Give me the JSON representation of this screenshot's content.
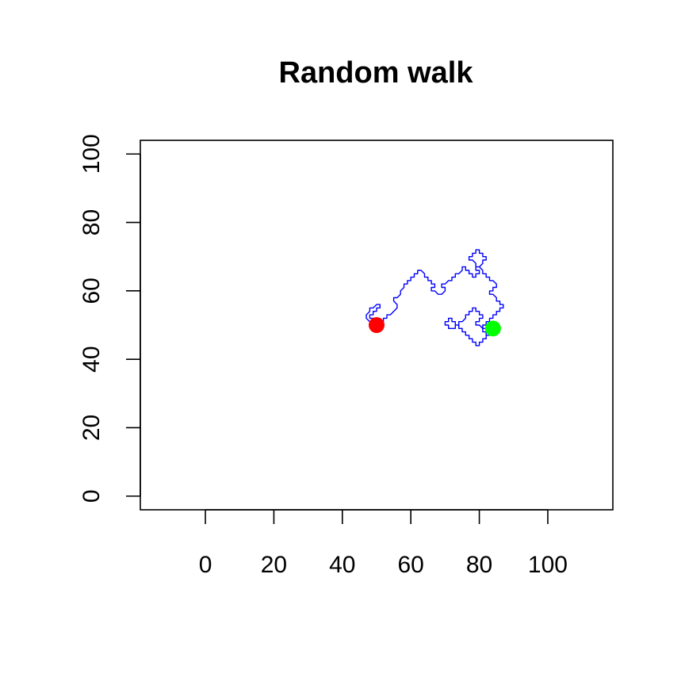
{
  "chart_data": {
    "type": "line",
    "title": "Random walk",
    "xlabel": "",
    "ylabel": "",
    "xlim": [
      -19,
      119
    ],
    "ylim": [
      -4,
      104
    ],
    "xticks": [
      "0",
      "20",
      "40",
      "60",
      "80",
      "100"
    ],
    "yticks": [
      "0",
      "20",
      "40",
      "60",
      "80",
      "100"
    ],
    "grid": false,
    "series": [
      {
        "color": "#0000FF",
        "x": [
          50,
          49,
          48,
          47,
          47,
          48,
          48,
          49,
          50,
          51,
          51,
          50,
          50,
          49,
          49,
          48,
          48,
          49,
          49,
          50,
          51,
          51,
          50,
          50,
          49,
          49,
          50,
          51,
          51,
          52,
          52,
          53,
          53,
          54,
          55,
          56,
          56,
          55,
          55,
          56,
          57,
          57,
          58,
          58,
          59,
          59,
          60,
          60,
          61,
          61,
          62,
          62,
          63,
          64,
          64,
          65,
          65,
          66,
          66,
          67,
          67,
          66,
          66,
          67,
          68,
          69,
          70,
          70,
          69,
          69,
          70,
          71,
          72,
          72,
          73,
          73,
          74,
          75,
          75,
          76,
          76,
          77,
          77,
          78,
          78,
          79,
          79,
          80,
          80,
          79,
          79,
          80,
          81,
          81,
          82,
          82,
          81,
          81,
          80,
          80,
          79,
          79,
          78,
          78,
          77,
          77,
          78,
          79,
          79,
          80,
          81,
          81,
          82,
          82,
          83,
          83,
          84,
          85,
          85,
          84,
          84,
          83,
          83,
          84,
          85,
          85,
          86,
          86,
          87,
          87,
          86,
          86,
          85,
          85,
          84,
          84,
          83,
          83,
          82,
          82,
          81,
          81,
          82,
          82,
          83,
          83,
          82,
          82,
          81,
          81,
          80,
          80,
          79,
          79,
          78,
          78,
          77,
          77,
          76,
          76,
          75,
          75,
          74,
          74,
          73,
          73,
          72,
          72,
          71,
          71,
          70,
          70,
          71,
          71,
          72,
          73,
          73,
          74,
          74,
          75,
          76,
          76,
          77,
          77,
          78,
          78,
          79,
          79,
          80,
          80,
          81,
          81,
          80,
          80,
          79,
          79,
          80,
          81,
          81,
          82,
          82,
          83,
          83,
          84,
          84,
          85,
          84,
          84
        ],
        "y": [
          50,
          50,
          51,
          52,
          53,
          54,
          55,
          55,
          56,
          56,
          55,
          55,
          54,
          54,
          53,
          53,
          52,
          52,
          51,
          51,
          51,
          50,
          50,
          49,
          49,
          50,
          50,
          50,
          51,
          51,
          52,
          52,
          53,
          53,
          54,
          55,
          56,
          57,
          58,
          58,
          59,
          60,
          61,
          62,
          62,
          63,
          63,
          64,
          64,
          65,
          65,
          66,
          66,
          65,
          64,
          64,
          63,
          63,
          62,
          62,
          61,
          61,
          60,
          60,
          59,
          59,
          60,
          61,
          61,
          62,
          62,
          63,
          63,
          64,
          64,
          65,
          65,
          66,
          67,
          67,
          66,
          66,
          65,
          65,
          64,
          64,
          65,
          65,
          66,
          66,
          67,
          67,
          68,
          69,
          69,
          70,
          70,
          71,
          71,
          72,
          72,
          71,
          71,
          70,
          70,
          69,
          69,
          68,
          67,
          67,
          66,
          65,
          65,
          64,
          64,
          63,
          63,
          62,
          61,
          61,
          60,
          60,
          59,
          59,
          58,
          57,
          57,
          56,
          56,
          55,
          55,
          54,
          54,
          53,
          53,
          52,
          52,
          51,
          51,
          50,
          50,
          49,
          49,
          48,
          48,
          47,
          47,
          46,
          46,
          45,
          45,
          44,
          44,
          45,
          45,
          46,
          46,
          47,
          47,
          48,
          48,
          49,
          49,
          50,
          50,
          51,
          51,
          52,
          52,
          51,
          51,
          50,
          50,
          49,
          49,
          49,
          50,
          50,
          51,
          51,
          52,
          53,
          53,
          54,
          54,
          55,
          55,
          54,
          54,
          53,
          53,
          52,
          52,
          51,
          51,
          50,
          50,
          49,
          48,
          48,
          47,
          47,
          48,
          48,
          49,
          49,
          50,
          49
        ]
      }
    ],
    "start_point": {
      "x": 50,
      "y": 50,
      "color": "#FF0000"
    },
    "end_point": {
      "x": 84,
      "y": 49,
      "color": "#00FF00"
    }
  }
}
